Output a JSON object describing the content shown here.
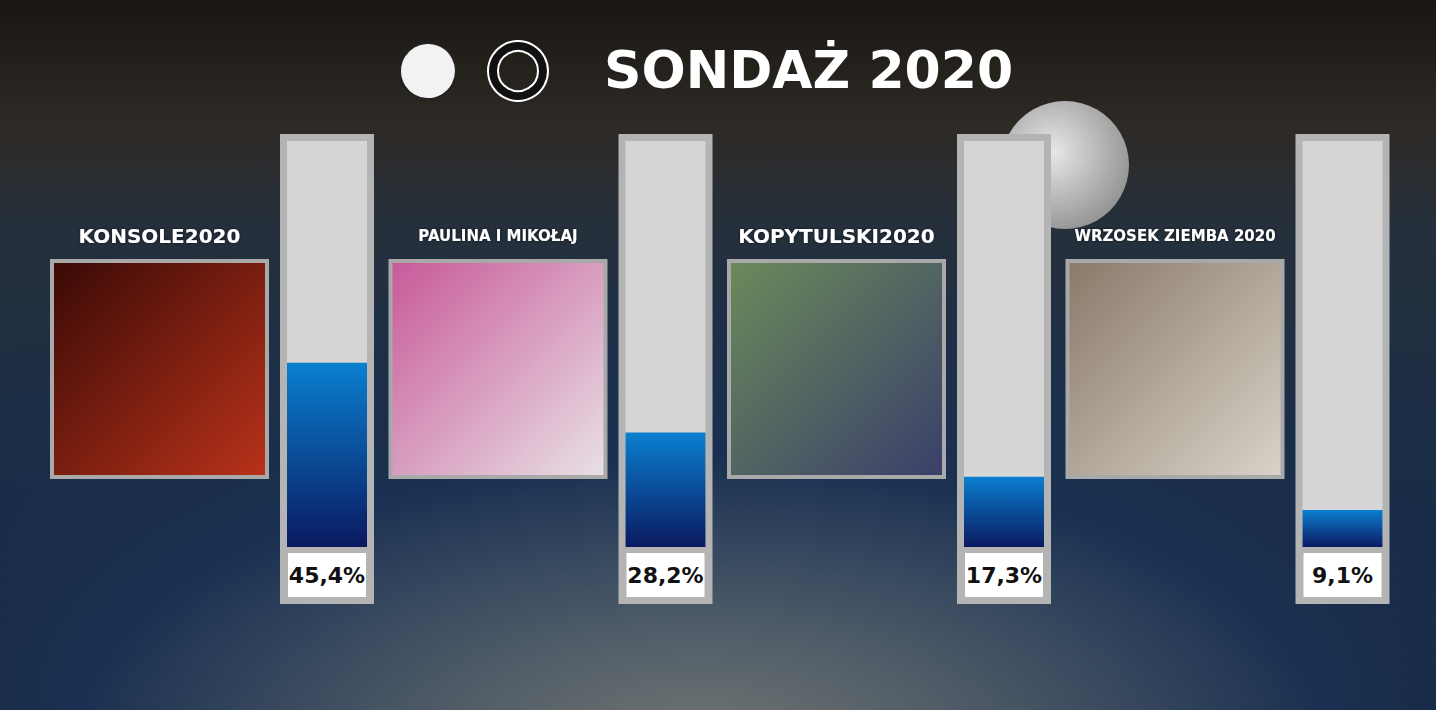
{
  "chart_data": {
    "type": "bar",
    "title": "SONDAŻ 2020",
    "categories": [
      "KONSOLE2020",
      "PAULINA I MIKOŁAJ",
      "KOPYTULSKI2020",
      "WRZOSEK ZIEMBA 2020"
    ],
    "values": [
      45.4,
      28.2,
      17.3,
      9.1
    ],
    "value_labels": [
      "45,4%",
      "28,2%",
      "17,3%",
      "9,1%"
    ],
    "color": "#0b7fd0",
    "ylim": [
      0,
      100
    ],
    "yticks": [
      0,
      100
    ],
    "grid": false,
    "data_labels": true,
    "tick_labels": false
  }
}
